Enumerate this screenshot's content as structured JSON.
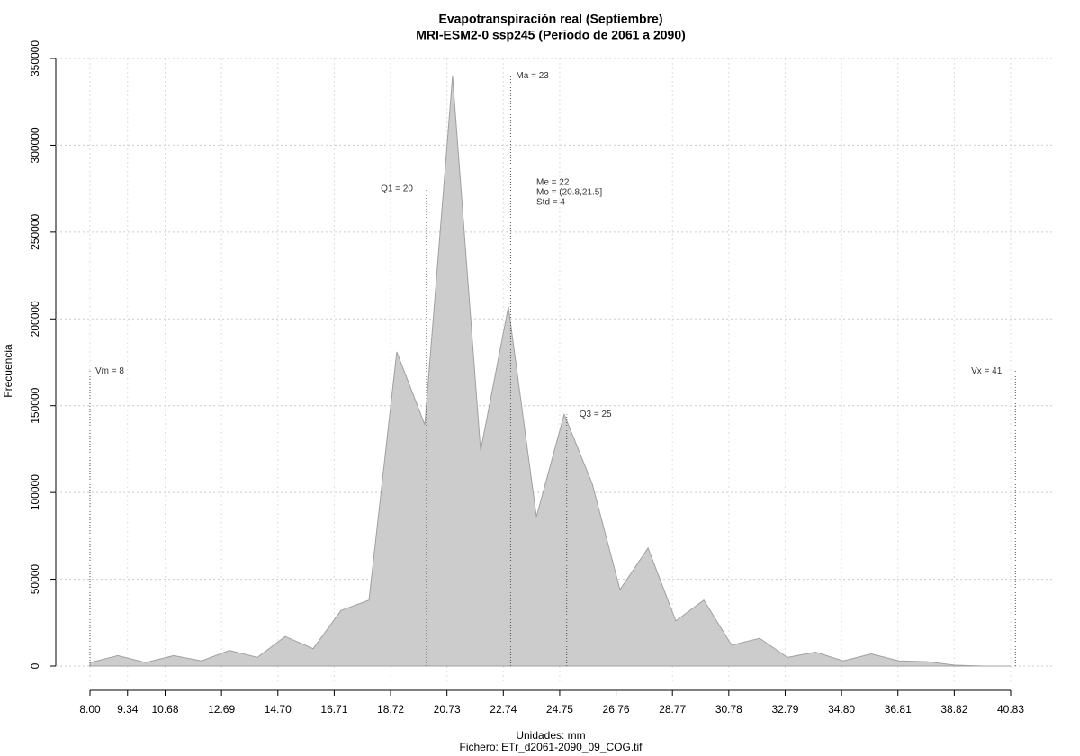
{
  "chart_data": {
    "type": "area",
    "title": "Evapotranspiración real (Septiembre)",
    "subtitle": "MRI-ESM2-0 ssp245 (Periodo de 2061 a 2090)",
    "x_label": "Unidades: mm",
    "caption": "Fichero: ETr_d2061-2090_09_COG.tif",
    "y_label": "Frecuencia",
    "color": "#cccccc",
    "x": [
      8.0,
      8.99,
      9.99,
      10.98,
      11.98,
      12.97,
      13.97,
      14.96,
      15.96,
      16.95,
      17.95,
      18.94,
      19.94,
      20.93,
      21.93,
      22.92,
      23.92,
      24.91,
      25.91,
      26.9,
      27.9,
      28.89,
      29.89,
      30.88,
      31.88,
      32.87,
      33.87,
      34.86,
      35.86,
      36.85,
      37.85,
      38.84,
      39.84,
      40.83
    ],
    "values": [
      2000,
      6000,
      2000,
      6000,
      3000,
      9000,
      5000,
      17000,
      10000,
      32000,
      38000,
      181000,
      139000,
      340000,
      124000,
      207000,
      86000,
      145000,
      105000,
      44000,
      68000,
      26000,
      38000,
      12000,
      16000,
      5000,
      8000,
      3000,
      7000,
      3000,
      2500,
      500,
      0,
      0
    ],
    "xlim": [
      8.0,
      40.83
    ],
    "ylim": [
      0,
      350000
    ],
    "xticks": [
      {
        "value": 8.0,
        "label": "8.00"
      },
      9.34,
      10.68,
      12.69,
      {
        "value": 14.7,
        "label": "14.70"
      },
      16.71,
      18.72,
      20.73,
      22.74,
      24.75,
      26.76,
      28.77,
      30.78,
      32.79,
      {
        "value": 34.8,
        "label": "34.80"
      },
      36.81,
      38.82,
      40.83
    ],
    "yticks": [
      0,
      50000,
      100000,
      150000,
      200000,
      250000,
      300000,
      350000
    ],
    "grid": true,
    "annotations": [
      {
        "label": "Vm = 8",
        "x": 8,
        "y": 170000
      },
      {
        "label": "Q1 = 20",
        "x": 20,
        "y": 275000
      },
      {
        "label": "Ma = 23",
        "x": 23,
        "y": 340000
      },
      {
        "label": "Q3 = 25",
        "x": 25,
        "y": 145000
      },
      {
        "label": "Vx = 41",
        "x": 41,
        "y": 170000
      }
    ],
    "stats_text": [
      "Me = 22",
      "Mo = (20.8,21.5]",
      "Std = 4"
    ]
  }
}
